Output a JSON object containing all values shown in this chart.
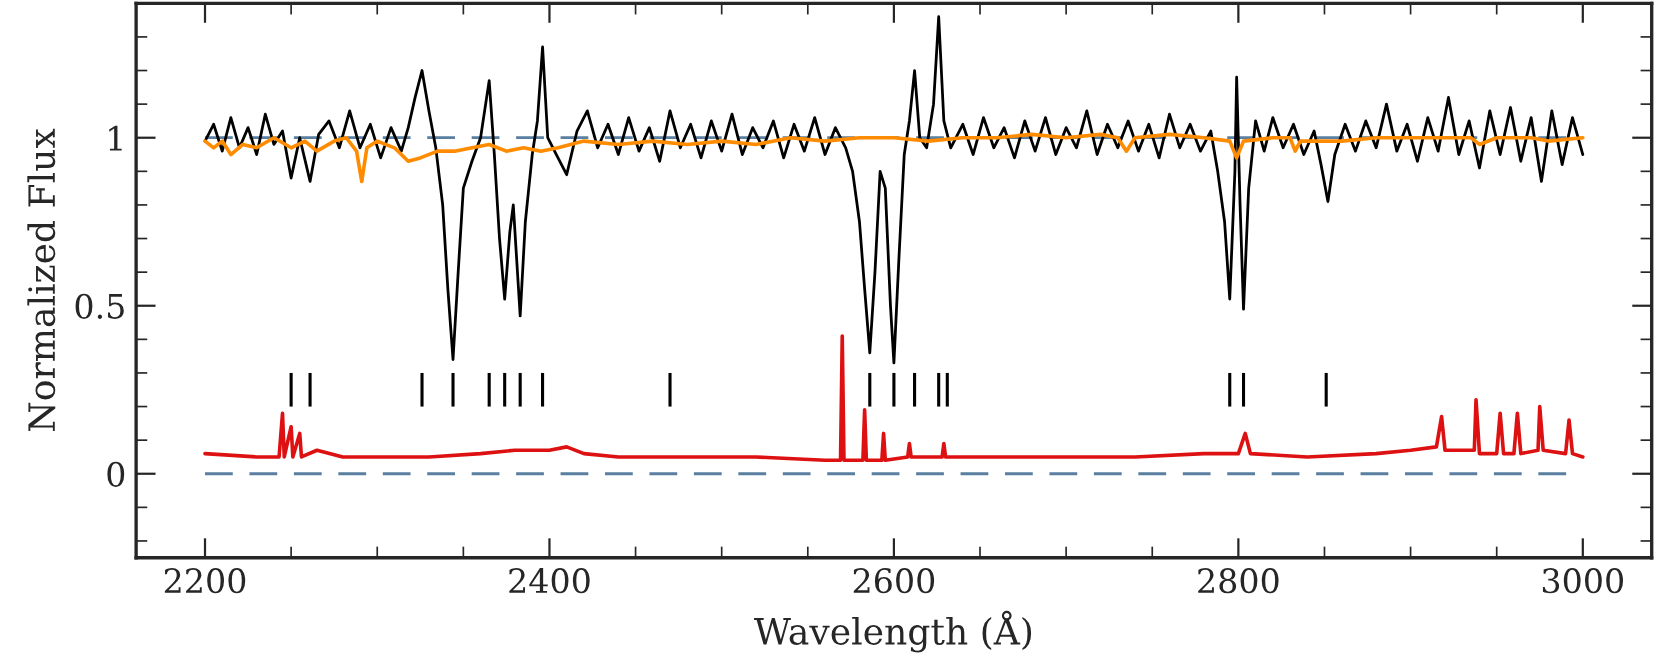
{
  "chart_data": {
    "type": "line",
    "xlabel": "Wavelength (Å)",
    "ylabel": "Normalized Flux",
    "xlim": [
      2160,
      3040
    ],
    "ylim": [
      -0.25,
      1.4
    ],
    "xticks": [
      2200,
      2400,
      2600,
      2800,
      3000
    ],
    "yticks": [
      0,
      0.5,
      1
    ],
    "grid": false,
    "legend": false,
    "marker": "none",
    "line_style": "solid",
    "ref_lines": [
      {
        "axis": "y",
        "value": 0,
        "color": "#5a7fa0",
        "line_style": "dashed"
      },
      {
        "axis": "y",
        "value": 1,
        "color": "#5a7fa0",
        "line_style": "dashed"
      }
    ],
    "series": [
      {
        "color": "#000000",
        "x": [
          2200,
          2205,
          2210,
          2215,
          2220,
          2225,
          2230,
          2235,
          2240,
          2245,
          2250,
          2255,
          2261,
          2266,
          2272,
          2278,
          2284,
          2290,
          2296,
          2302,
          2308,
          2314,
          2318,
          2322,
          2326,
          2330,
          2334,
          2338,
          2341,
          2344,
          2347,
          2350,
          2355,
          2360,
          2365,
          2368,
          2371,
          2374,
          2377,
          2379,
          2383,
          2386,
          2390,
          2393,
          2396,
          2399,
          2404,
          2410,
          2416,
          2422,
          2428,
          2434,
          2440,
          2446,
          2452,
          2458,
          2464,
          2470,
          2476,
          2482,
          2488,
          2494,
          2500,
          2506,
          2512,
          2518,
          2524,
          2530,
          2536,
          2542,
          2548,
          2554,
          2560,
          2566,
          2572,
          2576,
          2580,
          2583,
          2586,
          2589,
          2592,
          2595,
          2598,
          2600,
          2603,
          2606,
          2609,
          2612,
          2615,
          2619,
          2623,
          2626,
          2629,
          2633,
          2640,
          2646,
          2652,
          2658,
          2664,
          2670,
          2676,
          2682,
          2688,
          2694,
          2700,
          2706,
          2712,
          2718,
          2724,
          2730,
          2736,
          2742,
          2748,
          2754,
          2760,
          2766,
          2772,
          2778,
          2784,
          2788,
          2792,
          2795,
          2798,
          2799,
          2801,
          2803,
          2806,
          2810,
          2815,
          2820,
          2826,
          2832,
          2838,
          2844,
          2848,
          2852,
          2856,
          2862,
          2868,
          2874,
          2880,
          2886,
          2892,
          2898,
          2904,
          2910,
          2916,
          2922,
          2928,
          2934,
          2940,
          2946,
          2952,
          2958,
          2964,
          2970,
          2976,
          2982,
          2988,
          2994,
          3000
        ],
        "values": [
          0.99,
          1.04,
          0.96,
          1.06,
          0.97,
          1.03,
          0.95,
          1.07,
          0.98,
          1.02,
          0.88,
          1.0,
          0.87,
          1.01,
          1.05,
          0.97,
          1.08,
          0.97,
          1.04,
          0.94,
          1.03,
          0.96,
          1.03,
          1.12,
          1.2,
          1.08,
          0.97,
          0.8,
          0.55,
          0.34,
          0.6,
          0.85,
          0.93,
          1.0,
          1.17,
          0.95,
          0.7,
          0.52,
          0.72,
          0.8,
          0.47,
          0.75,
          0.95,
          1.05,
          1.27,
          1.0,
          0.95,
          0.89,
          1.02,
          1.08,
          0.97,
          1.04,
          0.95,
          1.06,
          0.96,
          1.03,
          0.93,
          1.08,
          0.97,
          1.04,
          0.94,
          1.05,
          0.96,
          1.07,
          0.95,
          1.03,
          0.97,
          1.05,
          0.94,
          1.04,
          0.96,
          1.06,
          0.95,
          1.03,
          0.97,
          0.9,
          0.75,
          0.55,
          0.36,
          0.6,
          0.9,
          0.85,
          0.5,
          0.33,
          0.65,
          0.95,
          1.05,
          1.2,
          1.0,
          0.97,
          1.1,
          1.36,
          1.05,
          0.97,
          1.04,
          0.95,
          1.06,
          0.97,
          1.03,
          0.94,
          1.05,
          0.96,
          1.06,
          0.95,
          1.03,
          0.97,
          1.08,
          0.95,
          1.04,
          0.97,
          1.05,
          0.96,
          1.04,
          0.94,
          1.07,
          0.97,
          1.04,
          0.96,
          1.02,
          0.9,
          0.75,
          0.52,
          0.9,
          1.18,
          0.8,
          0.49,
          0.85,
          1.05,
          0.96,
          1.06,
          0.97,
          1.04,
          0.95,
          1.02,
          0.92,
          0.81,
          0.95,
          1.04,
          0.96,
          1.05,
          0.97,
          1.1,
          0.96,
          1.04,
          0.93,
          1.06,
          0.96,
          1.12,
          0.95,
          1.05,
          0.91,
          1.08,
          0.95,
          1.09,
          0.93,
          1.06,
          0.87,
          1.08,
          0.92,
          1.06,
          0.95
        ]
      },
      {
        "color": "#ff8c00",
        "x": [
          2200,
          2205,
          2210,
          2215,
          2222,
          2230,
          2240,
          2250,
          2258,
          2265,
          2275,
          2282,
          2288,
          2291,
          2294,
          2300,
          2310,
          2318,
          2325,
          2335,
          2345,
          2355,
          2365,
          2375,
          2385,
          2395,
          2405,
          2420,
          2440,
          2460,
          2480,
          2500,
          2520,
          2540,
          2560,
          2580,
          2600,
          2620,
          2640,
          2660,
          2680,
          2700,
          2720,
          2730,
          2735,
          2740,
          2760,
          2780,
          2795,
          2799,
          2803,
          2820,
          2830,
          2833,
          2836,
          2860,
          2880,
          2900,
          2920,
          2935,
          2940,
          2950,
          2970,
          2980,
          3000
        ],
        "values": [
          0.99,
          0.97,
          0.99,
          0.95,
          0.98,
          0.97,
          1.0,
          0.97,
          0.99,
          0.96,
          0.99,
          1.0,
          0.96,
          0.87,
          0.97,
          0.99,
          0.97,
          0.93,
          0.94,
          0.96,
          0.96,
          0.97,
          0.98,
          0.96,
          0.97,
          0.96,
          0.97,
          0.99,
          0.98,
          0.99,
          0.98,
          0.99,
          0.98,
          1.0,
          0.99,
          1.0,
          1.0,
          0.99,
          1.0,
          1.0,
          1.01,
          1.0,
          1.01,
          1.0,
          0.96,
          1.0,
          1.01,
          1.0,
          0.99,
          0.94,
          0.99,
          1.0,
          1.0,
          0.96,
          0.99,
          0.99,
          1.0,
          1.0,
          1.0,
          1.0,
          0.98,
          1.0,
          1.0,
          0.99,
          1.0
        ]
      },
      {
        "color": "#dd1111",
        "x": [
          2200,
          2230,
          2243,
          2245,
          2246,
          2250,
          2251,
          2255,
          2256,
          2265,
          2280,
          2300,
          2330,
          2360,
          2380,
          2400,
          2410,
          2420,
          2440,
          2480,
          2520,
          2560,
          2569,
          2570,
          2571,
          2582,
          2583,
          2584,
          2593,
          2594,
          2595,
          2608,
          2609,
          2610,
          2628,
          2629,
          2630,
          2660,
          2700,
          2740,
          2780,
          2800,
          2804,
          2807,
          2840,
          2880,
          2900,
          2915,
          2918,
          2920,
          2937,
          2938,
          2940,
          2950,
          2952,
          2954,
          2960,
          2962,
          2964,
          2974,
          2975,
          2977,
          2990,
          2992,
          2994,
          3000
        ],
        "values": [
          0.06,
          0.05,
          0.05,
          0.18,
          0.05,
          0.14,
          0.05,
          0.12,
          0.05,
          0.07,
          0.05,
          0.05,
          0.05,
          0.06,
          0.07,
          0.07,
          0.08,
          0.06,
          0.05,
          0.05,
          0.05,
          0.04,
          0.04,
          0.41,
          0.04,
          0.04,
          0.19,
          0.04,
          0.04,
          0.12,
          0.04,
          0.05,
          0.09,
          0.05,
          0.05,
          0.09,
          0.05,
          0.05,
          0.05,
          0.05,
          0.06,
          0.06,
          0.12,
          0.06,
          0.05,
          0.06,
          0.07,
          0.08,
          0.17,
          0.07,
          0.07,
          0.22,
          0.06,
          0.06,
          0.18,
          0.06,
          0.06,
          0.18,
          0.06,
          0.07,
          0.2,
          0.07,
          0.06,
          0.16,
          0.06,
          0.05
        ]
      },
      {
        "type": "bar",
        "color": "#000000",
        "x": [
          2250,
          2261,
          2326,
          2344,
          2365,
          2374,
          2383,
          2396,
          2470,
          2586,
          2600,
          2612,
          2626,
          2631,
          2795,
          2803,
          2851
        ],
        "base": [
          0.2,
          0.2,
          0.2,
          0.2,
          0.2,
          0.2,
          0.2,
          0.2,
          0.2,
          0.2,
          0.2,
          0.2,
          0.2,
          0.2,
          0.2,
          0.2,
          0.2
        ],
        "values": [
          0.1,
          0.1,
          0.1,
          0.1,
          0.1,
          0.1,
          0.1,
          0.1,
          0.1,
          0.1,
          0.1,
          0.1,
          0.1,
          0.1,
          0.1,
          0.1,
          0.1
        ]
      }
    ]
  }
}
